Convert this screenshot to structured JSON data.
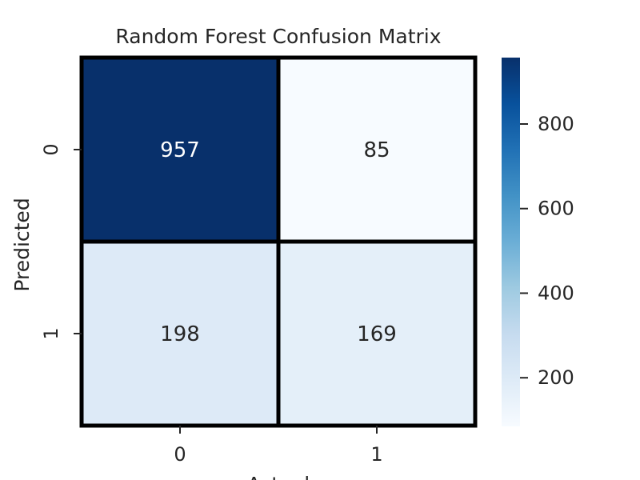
{
  "chart_data": {
    "type": "heatmap",
    "title": "Random Forest Confusion Matrix",
    "xlabel": "Actual",
    "ylabel": "Predicted",
    "x_categories": [
      "0",
      "1"
    ],
    "y_categories": [
      "0",
      "1"
    ],
    "values": [
      [
        957,
        85
      ],
      [
        198,
        169
      ]
    ],
    "colormap": "Blues",
    "color_range": [
      85,
      957
    ],
    "colorbar_ticks": [
      200,
      400,
      600,
      800
    ],
    "colorbar_tick_labels": [
      "200",
      "400",
      "600",
      "800"
    ],
    "colorbar_placement": "right",
    "grid": false
  }
}
